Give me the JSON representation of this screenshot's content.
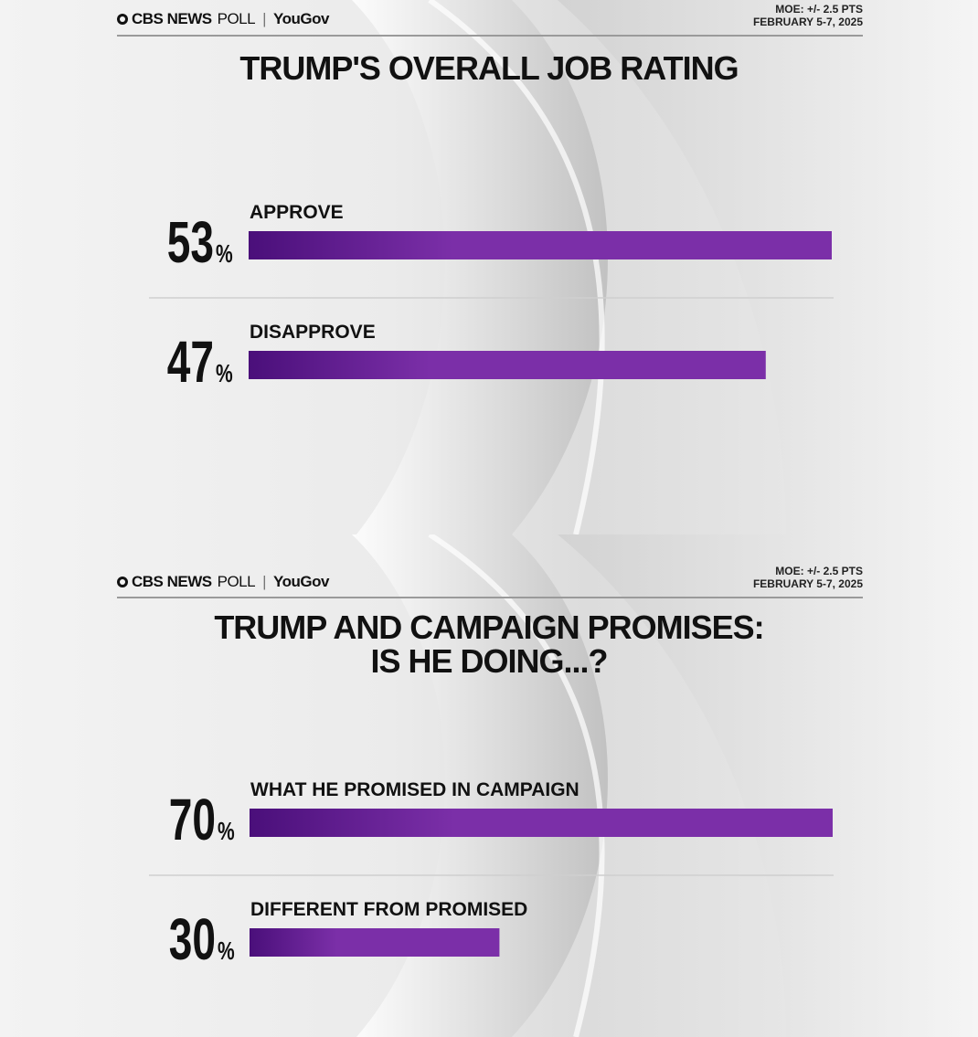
{
  "brand": {
    "network": "CBS NEWS",
    "poll": "POLL",
    "partner": "YouGov",
    "moe": "MOE: +/- 2.5 PTS",
    "dates": "FEBRUARY 5-7, 2025"
  },
  "colors": {
    "bar_start": "#4a0f7a",
    "bar_end": "#7b2fa8",
    "text": "#111111"
  },
  "chart_data": [
    {
      "type": "bar",
      "orientation": "horizontal",
      "title": "TRUMP'S OVERALL JOB RATING",
      "categories": [
        "APPROVE",
        "DISAPPROVE"
      ],
      "values": [
        53,
        47
      ],
      "value_labels": [
        "53",
        "47"
      ],
      "unit": "%",
      "xlim": [
        0,
        53
      ]
    },
    {
      "type": "bar",
      "orientation": "horizontal",
      "title_line1": "TRUMP AND CAMPAIGN PROMISES:",
      "title_line2": "IS HE DOING...?",
      "categories": [
        "WHAT HE PROMISED IN CAMPAIGN",
        "DIFFERENT FROM PROMISED"
      ],
      "values": [
        70,
        30
      ],
      "value_labels": [
        "70",
        "30"
      ],
      "unit": "%",
      "xlim": [
        0,
        70
      ]
    }
  ]
}
